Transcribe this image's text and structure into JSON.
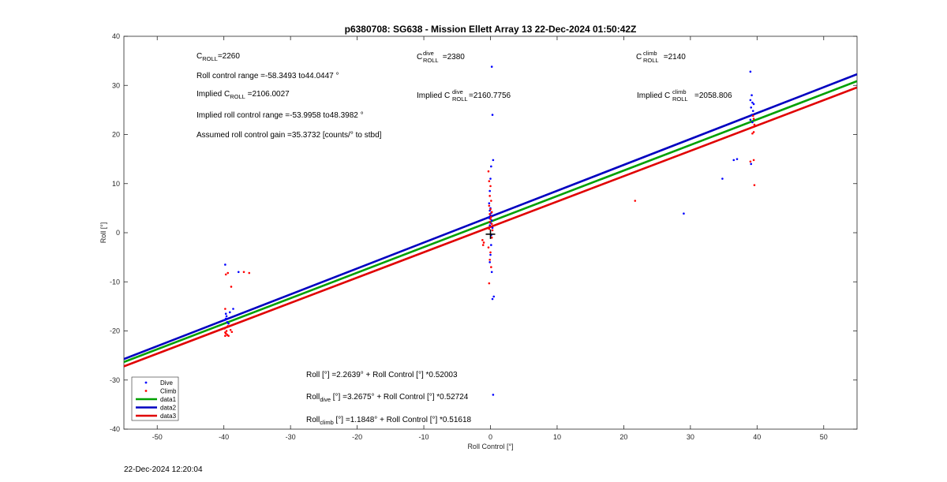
{
  "chart_data": {
    "type": "scatter",
    "title": "p6380708: SG638 - Mission Ellett Array 13 22-Dec-2024 01:50:42Z",
    "xlabel": "Roll Control [°]",
    "ylabel": "Roll [°]",
    "xlim": [
      -55,
      55
    ],
    "ylim": [
      -40,
      40
    ],
    "xticks": [
      -50,
      -40,
      -30,
      -20,
      -10,
      0,
      10,
      20,
      30,
      40,
      50
    ],
    "yticks": [
      -40,
      -30,
      -20,
      -10,
      0,
      10,
      20,
      30,
      40
    ],
    "grid": false,
    "legend_position": "bottom-left",
    "legend": [
      "Dive",
      "Climb",
      "data1",
      "data2",
      "data3"
    ],
    "colors": {
      "dive": "#0000ff",
      "climb": "#ff0000",
      "data1": "#00a000",
      "data2": "#0000c0",
      "data3": "#e00000",
      "center": "#000000"
    },
    "fit_lines": [
      {
        "name": "data1",
        "intercept": 2.2639,
        "slope": 0.52003,
        "color": "#00a000"
      },
      {
        "name": "data2",
        "intercept": 3.2675,
        "slope": 0.52724,
        "color": "#0000c0"
      },
      {
        "name": "data3",
        "intercept": 1.1848,
        "slope": 0.51618,
        "color": "#e00000"
      }
    ],
    "series": [
      {
        "name": "Dive",
        "color": "#0000ff",
        "points": [
          [
            -39.8,
            -6.5
          ],
          [
            -39.7,
            -17.5
          ],
          [
            -39.5,
            -18.2
          ],
          [
            -39.9,
            -17.8
          ],
          [
            -39.6,
            -17.0
          ],
          [
            -39.3,
            -18.5
          ],
          [
            -39.7,
            -16.5
          ],
          [
            -38.6,
            -15.5
          ],
          [
            -39.1,
            -16.2
          ],
          [
            -37.8,
            -8.0
          ],
          [
            0.2,
            33.8
          ],
          [
            0.3,
            24.0
          ],
          [
            0.4,
            14.8
          ],
          [
            0.1,
            13.5
          ],
          [
            0.0,
            11.0
          ],
          [
            -0.1,
            8.5
          ],
          [
            -0.2,
            6.0
          ],
          [
            0.0,
            5.0
          ],
          [
            -0.1,
            4.5
          ],
          [
            0.1,
            4.0
          ],
          [
            0.0,
            3.5
          ],
          [
            -0.2,
            3.0
          ],
          [
            0.2,
            2.5
          ],
          [
            0.0,
            2.0
          ],
          [
            -0.1,
            1.5
          ],
          [
            0.3,
            1.0
          ],
          [
            0.1,
            -2.5
          ],
          [
            0.0,
            -4.5
          ],
          [
            -0.1,
            -6.0
          ],
          [
            0.2,
            -8.0
          ],
          [
            0.5,
            -13.0
          ],
          [
            0.3,
            -13.5
          ],
          [
            0.4,
            -33.0
          ],
          [
            0.1,
            -0.5
          ],
          [
            39.0,
            32.8
          ],
          [
            39.2,
            28.0
          ],
          [
            39.0,
            27.0
          ],
          [
            39.3,
            26.5
          ],
          [
            39.5,
            26.2
          ],
          [
            39.1,
            25.5
          ],
          [
            39.4,
            24.8
          ],
          [
            39.2,
            24.0
          ],
          [
            39.0,
            23.0
          ],
          [
            39.3,
            22.5
          ],
          [
            39.1,
            14.0
          ],
          [
            36.5,
            14.8
          ],
          [
            37.0,
            15.0
          ],
          [
            34.8,
            11.0
          ],
          [
            29.0,
            3.9
          ]
        ]
      },
      {
        "name": "Climb",
        "color": "#ff0000",
        "points": [
          [
            -39.7,
            -8.5
          ],
          [
            -39.4,
            -8.2
          ],
          [
            -38.9,
            -11.0
          ],
          [
            -37.0,
            -8.0
          ],
          [
            -36.2,
            -8.2
          ],
          [
            -39.8,
            -15.5
          ],
          [
            -39.9,
            -19.5
          ],
          [
            -39.6,
            -20.0
          ],
          [
            -39.8,
            -20.3
          ],
          [
            -39.5,
            -20.8
          ],
          [
            -39.8,
            -21.0
          ],
          [
            -39.4,
            -19.0
          ],
          [
            -39.7,
            -20.5
          ],
          [
            -39.0,
            -19.8
          ],
          [
            -39.3,
            -21.0
          ],
          [
            -38.8,
            -20.2
          ],
          [
            -0.3,
            12.5
          ],
          [
            -0.2,
            10.5
          ],
          [
            0.0,
            9.5
          ],
          [
            -0.1,
            7.5
          ],
          [
            0.1,
            6.5
          ],
          [
            -0.2,
            5.5
          ],
          [
            0.0,
            4.8
          ],
          [
            0.2,
            4.2
          ],
          [
            -0.1,
            3.8
          ],
          [
            0.1,
            3.2
          ],
          [
            0.0,
            2.8
          ],
          [
            -0.1,
            2.2
          ],
          [
            0.2,
            1.8
          ],
          [
            0.0,
            1.2
          ],
          [
            -0.2,
            0.8
          ],
          [
            -1.2,
            -1.5
          ],
          [
            -1.0,
            -2.0
          ],
          [
            -1.1,
            -2.5
          ],
          [
            -0.3,
            -3.0
          ],
          [
            0.0,
            -4.0
          ],
          [
            -0.1,
            -5.5
          ],
          [
            0.1,
            -7.0
          ],
          [
            -0.2,
            -10.3
          ],
          [
            0.2,
            -1.0
          ],
          [
            0.3,
            0.5
          ],
          [
            39.4,
            23.8
          ],
          [
            39.5,
            23.2
          ],
          [
            39.6,
            22.0
          ],
          [
            39.3,
            21.5
          ],
          [
            39.5,
            20.5
          ],
          [
            39.3,
            20.2
          ],
          [
            39.0,
            14.5
          ],
          [
            39.5,
            14.8
          ],
          [
            39.6,
            9.7
          ],
          [
            21.7,
            6.5
          ]
        ]
      }
    ],
    "center_marker": {
      "x": 0.0,
      "y": -0.3,
      "color": "#000000"
    },
    "annotations_top": {
      "c_roll": {
        "base": "C",
        "sub": "ROLL",
        "rest": "=2260"
      },
      "roll_range": "Roll control range =-58.3493 to44.0447 °",
      "implied_c": {
        "pre": "Implied C",
        "sub": "ROLL",
        "rest": " =2106.0027"
      },
      "implied_range": "Implied roll control range =-53.9958 to48.3982 °",
      "gain": "Assumed roll control gain =35.3732 [counts/° to stbd]",
      "c_dive": {
        "base": "C",
        "sup": "dive",
        "sub": "ROLL",
        "rest": " =2380"
      },
      "implied_dive": {
        "pre": "Implied C",
        "sup": "dive",
        "sub": "ROLL",
        "rest": "=2160.7756"
      },
      "c_climb": {
        "base": "C",
        "sup": "climb",
        "sub": "ROLL",
        "rest": " =2140"
      },
      "implied_climb": {
        "pre": "Implied C",
        "sup": "climb",
        "sub": "ROLL",
        "rest": "=2058.806"
      }
    },
    "annotations_bottom": {
      "eq_all": "Roll [°] =2.2639° + Roll Control [°] *0.52003",
      "eq_dive": {
        "pre": "Roll",
        "sub": "dive",
        "rest": " [°] =3.2675° + Roll Control [°] *0.52724"
      },
      "eq_climb": {
        "pre": "Roll",
        "sub": "climb",
        "rest": " [°] =1.1848° + Roll Control [°] *0.51618"
      }
    }
  },
  "timestamp": "22-Dec-2024 12:20:04"
}
